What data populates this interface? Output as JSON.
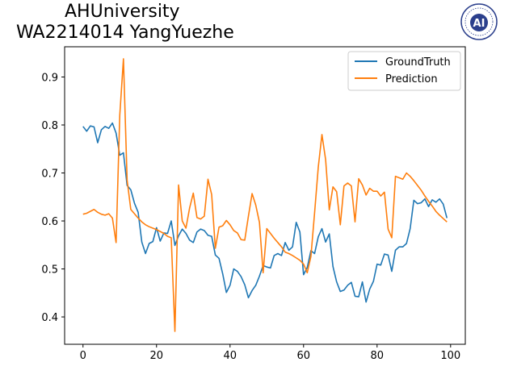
{
  "header": {
    "line1": "AHUniversity",
    "line2": "WA2214014 YangYuezhe",
    "logo_text": "AI"
  },
  "colors": {
    "groundtruth": "#1f77b4",
    "prediction": "#ff7f0e",
    "logo": "#2b3f8c"
  },
  "chart_data": {
    "type": "line",
    "xlim": [
      -5,
      104
    ],
    "ylim": [
      0.343,
      0.963
    ],
    "x_ticks": [
      0,
      20,
      40,
      60,
      80,
      100
    ],
    "y_ticks": [
      0.4,
      0.5,
      0.6,
      0.7,
      0.8,
      0.9
    ],
    "x_tick_labels": [
      "0",
      "20",
      "40",
      "60",
      "80",
      "100"
    ],
    "y_tick_labels": [
      "0.4",
      "0.5",
      "0.6",
      "0.7",
      "0.8",
      "0.9"
    ],
    "legend": {
      "position": "top-right"
    },
    "series": [
      {
        "name": "GroundTruth",
        "color": "#1f77b4",
        "values": [
          0.797,
          0.787,
          0.798,
          0.796,
          0.763,
          0.79,
          0.797,
          0.793,
          0.804,
          0.783,
          0.737,
          0.742,
          0.674,
          0.665,
          0.637,
          0.618,
          0.556,
          0.532,
          0.553,
          0.557,
          0.586,
          0.558,
          0.575,
          0.574,
          0.6,
          0.549,
          0.569,
          0.583,
          0.574,
          0.56,
          0.555,
          0.577,
          0.583,
          0.58,
          0.57,
          0.568,
          0.529,
          0.522,
          0.49,
          0.451,
          0.466,
          0.5,
          0.495,
          0.484,
          0.467,
          0.44,
          0.455,
          0.466,
          0.485,
          0.507,
          0.504,
          0.502,
          0.528,
          0.532,
          0.528,
          0.555,
          0.539,
          0.546,
          0.597,
          0.577,
          0.488,
          0.503,
          0.538,
          0.532,
          0.567,
          0.584,
          0.556,
          0.573,
          0.505,
          0.473,
          0.453,
          0.456,
          0.466,
          0.472,
          0.443,
          0.442,
          0.473,
          0.431,
          0.458,
          0.474,
          0.51,
          0.508,
          0.531,
          0.529,
          0.495,
          0.539,
          0.546,
          0.546,
          0.553,
          0.584,
          0.643,
          0.636,
          0.638,
          0.646,
          0.63,
          0.644,
          0.639,
          0.646,
          0.635,
          0.606
        ]
      },
      {
        "name": "Prediction",
        "color": "#ff7f0e",
        "values": [
          0.614,
          0.616,
          0.62,
          0.624,
          0.618,
          0.614,
          0.612,
          0.615,
          0.606,
          0.555,
          0.82,
          0.938,
          0.685,
          0.624,
          0.615,
          0.606,
          0.598,
          0.592,
          0.588,
          0.585,
          0.582,
          0.578,
          0.574,
          0.568,
          0.565,
          0.37,
          0.675,
          0.6,
          0.585,
          0.627,
          0.658,
          0.607,
          0.604,
          0.61,
          0.687,
          0.655,
          0.543,
          0.587,
          0.59,
          0.601,
          0.592,
          0.58,
          0.575,
          0.561,
          0.56,
          0.61,
          0.657,
          0.633,
          0.597,
          0.492,
          0.584,
          0.574,
          0.564,
          0.555,
          0.546,
          0.535,
          0.532,
          0.528,
          0.523,
          0.518,
          0.51,
          0.492,
          0.526,
          0.617,
          0.712,
          0.78,
          0.728,
          0.623,
          0.671,
          0.661,
          0.592,
          0.673,
          0.679,
          0.673,
          0.598,
          0.688,
          0.675,
          0.654,
          0.668,
          0.662,
          0.662,
          0.652,
          0.66,
          0.583,
          0.565,
          0.693,
          0.69,
          0.687,
          0.7,
          0.693,
          0.684,
          0.674,
          0.664,
          0.652,
          0.641,
          0.631,
          0.62,
          0.612,
          0.605,
          0.598
        ]
      }
    ]
  }
}
